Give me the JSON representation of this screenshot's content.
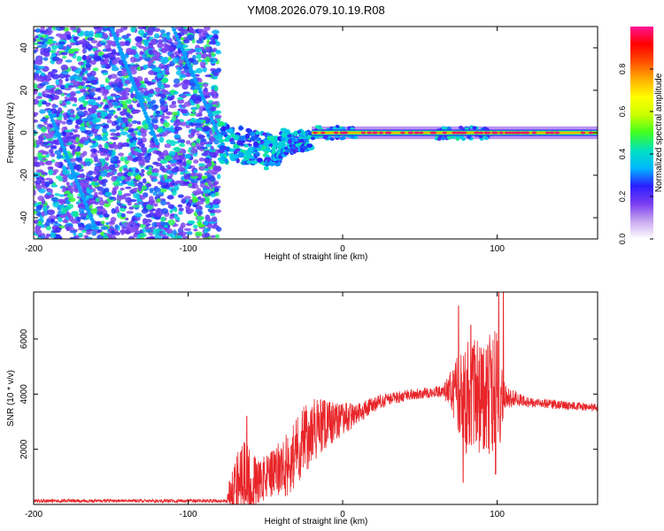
{
  "title": "YM08.2026.079.10.19.R08",
  "colors": {
    "snr_line": "#e8262a",
    "axis": "#000000",
    "scatter": "#8a2be2",
    "colormap": [
      "#ffffff",
      "#c8a8f0",
      "#7a3cf0",
      "#2a20ff",
      "#00b8ff",
      "#00e0c0",
      "#40ff20",
      "#c8ff00",
      "#ffff00",
      "#ffb000",
      "#ff5000",
      "#ff0000",
      "#ff1493"
    ]
  },
  "chart_data": [
    {
      "type": "heatmap",
      "name": "spectrogram",
      "xlabel": "Height of straight line (km)",
      "ylabel": "Frequency (Hz)",
      "xlim": [
        -200,
        165
      ],
      "ylim": [
        -50,
        50
      ],
      "xticks": [
        {
          "value": -200,
          "label": "-200"
        },
        {
          "value": -100,
          "label": "-100"
        },
        {
          "value": 0,
          "label": "0"
        },
        {
          "value": 100,
          "label": "100"
        }
      ],
      "yticks": [
        {
          "value": -40,
          "label": "-40"
        },
        {
          "value": -20,
          "label": "-20"
        },
        {
          "value": 0,
          "label": "0"
        },
        {
          "value": 20,
          "label": "20"
        },
        {
          "value": 40,
          "label": "40"
        }
      ],
      "noise_region_x": [
        -200,
        -80
      ],
      "signal_band": {
        "x_start": -20,
        "x_end": 165,
        "frequency": 0
      },
      "colorbar": {
        "label": "Normalized spectral amplitude",
        "range": [
          0,
          1
        ],
        "ticks": [
          {
            "value": 0.0,
            "label": "0.0"
          },
          {
            "value": 0.2,
            "label": "0.2"
          },
          {
            "value": 0.4,
            "label": "0.4"
          },
          {
            "value": 0.6,
            "label": "0.6"
          },
          {
            "value": 0.8,
            "label": "0.8"
          }
        ]
      }
    },
    {
      "type": "line",
      "name": "snr",
      "xlabel": "Height of straight line (km)",
      "ylabel": "SNR (10 * v/v)",
      "xlim": [
        -200,
        165
      ],
      "ylim": [
        0,
        7700
      ],
      "xticks": [
        {
          "value": -200,
          "label": "-200"
        },
        {
          "value": -100,
          "label": "-100"
        },
        {
          "value": 0,
          "label": "0"
        },
        {
          "value": 100,
          "label": "100"
        }
      ],
      "yticks": [
        {
          "value": 2000,
          "label": "2000"
        },
        {
          "value": 4000,
          "label": "4000"
        },
        {
          "value": 6000,
          "label": "6000"
        }
      ],
      "envelope": [
        {
          "x": -200,
          "base": 130,
          "amp": 60
        },
        {
          "x": -75,
          "base": 130,
          "amp": 60
        },
        {
          "x": -72,
          "base": 600,
          "amp": 900
        },
        {
          "x": -65,
          "base": 900,
          "amp": 1600
        },
        {
          "x": -55,
          "base": 800,
          "amp": 800
        },
        {
          "x": -45,
          "base": 1100,
          "amp": 900
        },
        {
          "x": -35,
          "base": 1500,
          "amp": 1200
        },
        {
          "x": -25,
          "base": 2400,
          "amp": 1300
        },
        {
          "x": -15,
          "base": 2800,
          "amp": 1100
        },
        {
          "x": -5,
          "base": 3000,
          "amp": 700
        },
        {
          "x": 10,
          "base": 3300,
          "amp": 400
        },
        {
          "x": 25,
          "base": 3750,
          "amp": 250
        },
        {
          "x": 45,
          "base": 4000,
          "amp": 200
        },
        {
          "x": 65,
          "base": 4100,
          "amp": 200
        },
        {
          "x": 72,
          "base": 4100,
          "amp": 1000
        },
        {
          "x": 80,
          "base": 4000,
          "amp": 2200
        },
        {
          "x": 92,
          "base": 3900,
          "amp": 2000
        },
        {
          "x": 100,
          "base": 4000,
          "amp": 2600
        },
        {
          "x": 105,
          "base": 3900,
          "amp": 400
        },
        {
          "x": 120,
          "base": 3700,
          "amp": 180
        },
        {
          "x": 165,
          "base": 3500,
          "amp": 150
        }
      ],
      "spikes": [
        {
          "x": -62,
          "y": 3200
        },
        {
          "x": 75,
          "y": 7200
        },
        {
          "x": 83,
          "y": 6500
        },
        {
          "x": 101,
          "y": 7700
        },
        {
          "x": 104,
          "y": 7700
        },
        {
          "x": 78,
          "y": 800
        },
        {
          "x": 99,
          "y": 1100
        }
      ]
    }
  ]
}
